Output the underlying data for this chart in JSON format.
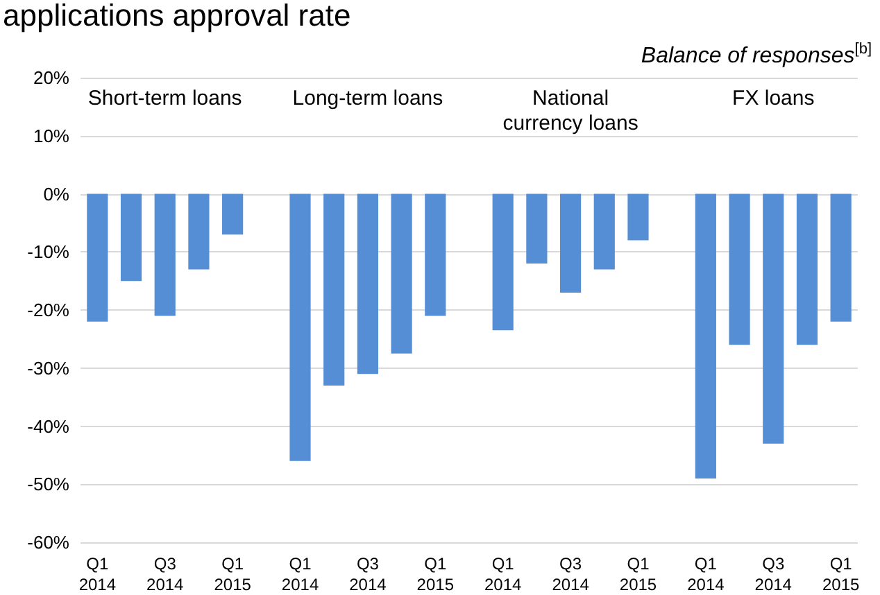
{
  "chart_data": {
    "type": "bar",
    "title": "applications approval rate",
    "subtitle": "Balance of responses$^{[b]}$",
    "categories": [
      "Q1\n2014",
      null,
      "Q3\n2014",
      null,
      "Q1\n2015",
      null,
      "Q1\n2014",
      null,
      "Q3\n2014",
      null,
      "Q1\n2015",
      null,
      "Q1\n2014",
      null,
      "Q3\n2014",
      null,
      "Q1\n2015",
      null,
      "Q1\n2014",
      null,
      "Q3\n2014",
      null,
      "Q1\n2015"
    ],
    "values": [
      -22,
      -15,
      -21,
      -13,
      -7,
      null,
      -46,
      -33,
      -31,
      -27.5,
      -21,
      null,
      -23.5,
      -12,
      -17,
      -13,
      -8,
      null,
      -49,
      -26,
      -43,
      -26,
      -22
    ],
    "color": "#558ed5",
    "annotations": [
      "Short-term loans",
      "Long-term loans",
      "National\ncurrency loans",
      "FX loans"
    ],
    "ylim": [
      -60,
      20
    ],
    "yticks": [
      {
        "value": -60,
        "label": "-60%"
      },
      {
        "value": -50,
        "label": "-50%"
      },
      {
        "value": -40,
        "label": "-40%"
      },
      {
        "value": -30,
        "label": "-30%"
      },
      {
        "value": -20,
        "label": "-20%"
      },
      {
        "value": -10,
        "label": "-10%"
      },
      {
        "value": 0,
        "label": "0%"
      },
      {
        "value": 10,
        "label": "10%"
      },
      {
        "value": 20,
        "label": "20%"
      }
    ],
    "grid": "y"
  }
}
